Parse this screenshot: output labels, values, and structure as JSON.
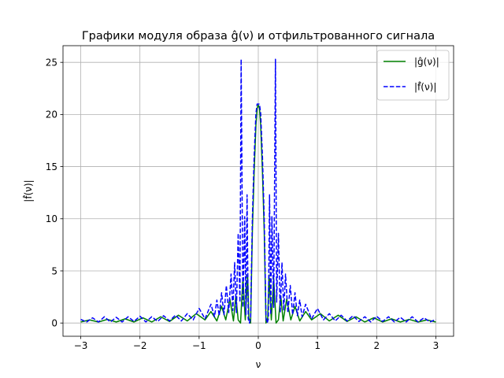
{
  "chart_data": {
    "type": "line",
    "title": "Графики модуля образа ĝ(ν) и отфильтрованного сигнала",
    "xlabel": "ν",
    "ylabel": "|f̂(ν)|",
    "xlim": [
      -3.3,
      3.3
    ],
    "ylim": [
      -1.27,
      26.6
    ],
    "xticks": [
      -3,
      -2,
      -1,
      0,
      1,
      2,
      3
    ],
    "xtick_labels": [
      "−3",
      "−2",
      "−1",
      "0",
      "1",
      "2",
      "3"
    ],
    "yticks": [
      0,
      5,
      10,
      15,
      20,
      25
    ],
    "ytick_labels": [
      "0",
      "5",
      "10",
      "15",
      "20",
      "25"
    ],
    "grid": true,
    "legend_position": "top-right",
    "series": [
      {
        "name": "|ĝ(ν)|",
        "color": "#008000",
        "style": "solid",
        "x": [
          -3.0,
          -2.85,
          -2.7,
          -2.55,
          -2.4,
          -2.25,
          -2.1,
          -1.95,
          -1.8,
          -1.65,
          -1.5,
          -1.35,
          -1.2,
          -1.05,
          -0.9,
          -0.8,
          -0.7,
          -0.62,
          -0.55,
          -0.48,
          -0.42,
          -0.38,
          -0.34,
          -0.3,
          -0.26,
          -0.22,
          -0.18,
          -0.16,
          -0.13,
          -0.1,
          -0.07,
          -0.04,
          -0.02,
          0.0,
          0.02,
          0.04,
          0.07,
          0.1,
          0.13,
          0.16,
          0.18,
          0.22,
          0.26,
          0.3,
          0.34,
          0.38,
          0.42,
          0.48,
          0.55,
          0.62,
          0.7,
          0.8,
          0.9,
          1.05,
          1.2,
          1.35,
          1.5,
          1.65,
          1.8,
          1.95,
          2.1,
          2.25,
          2.4,
          2.55,
          2.7,
          2.85,
          3.0
        ],
        "y": [
          0.1,
          0.3,
          0.1,
          0.35,
          0.1,
          0.4,
          0.1,
          0.5,
          0.1,
          0.6,
          0.15,
          0.75,
          0.2,
          0.9,
          0.3,
          1.1,
          0.2,
          1.6,
          0.3,
          2.3,
          0.2,
          2.6,
          0.3,
          0.0,
          4.3,
          0.3,
          4.6,
          0.5,
          0.0,
          8.8,
          14.5,
          19.0,
          20.6,
          20.9,
          20.6,
          19.0,
          14.5,
          8.8,
          0.0,
          0.5,
          4.6,
          0.3,
          4.3,
          0.0,
          0.3,
          2.6,
          0.2,
          2.3,
          0.3,
          1.6,
          0.2,
          1.1,
          0.3,
          0.9,
          0.2,
          0.75,
          0.15,
          0.6,
          0.1,
          0.5,
          0.1,
          0.4,
          0.1,
          0.35,
          0.1,
          0.3,
          0.1
        ]
      },
      {
        "name": "|f̂(ν)|",
        "color": "#0000ff",
        "style": "dashed",
        "x": [
          -3.0,
          -2.9,
          -2.8,
          -2.7,
          -2.6,
          -2.5,
          -2.4,
          -2.3,
          -2.2,
          -2.1,
          -2.0,
          -1.9,
          -1.8,
          -1.7,
          -1.6,
          -1.5,
          -1.4,
          -1.3,
          -1.2,
          -1.1,
          -1.0,
          -0.9,
          -0.8,
          -0.74,
          -0.7,
          -0.66,
          -0.62,
          -0.58,
          -0.54,
          -0.5,
          -0.46,
          -0.43,
          -0.4,
          -0.37,
          -0.34,
          -0.31,
          -0.29,
          -0.26,
          -0.23,
          -0.21,
          -0.19,
          -0.17,
          -0.15,
          -0.13,
          -0.1,
          -0.07,
          -0.04,
          -0.02,
          0.0,
          0.02,
          0.04,
          0.07,
          0.1,
          0.13,
          0.15,
          0.17,
          0.19,
          0.21,
          0.23,
          0.26,
          0.29,
          0.31,
          0.34,
          0.37,
          0.4,
          0.43,
          0.46,
          0.5,
          0.54,
          0.58,
          0.62,
          0.66,
          0.7,
          0.74,
          0.8,
          0.9,
          1.0,
          1.1,
          1.2,
          1.3,
          1.4,
          1.5,
          1.6,
          1.7,
          1.8,
          1.9,
          2.0,
          2.1,
          2.2,
          2.3,
          2.4,
          2.5,
          2.6,
          2.7,
          2.8,
          2.9,
          3.0
        ],
        "y": [
          0.35,
          0.1,
          0.5,
          0.1,
          0.6,
          0.1,
          0.55,
          0.1,
          0.6,
          0.15,
          0.65,
          0.1,
          0.6,
          0.15,
          0.7,
          0.2,
          0.75,
          0.2,
          0.9,
          0.3,
          1.4,
          0.4,
          1.8,
          0.6,
          2.2,
          0.7,
          2.9,
          0.8,
          3.6,
          1.0,
          4.7,
          1.2,
          5.8,
          1.0,
          8.6,
          2.0,
          25.3,
          1.5,
          10.2,
          0.8,
          12.3,
          0.4,
          0.0,
          0.5,
          10.0,
          16.0,
          20.1,
          21.0,
          21.0,
          21.0,
          20.1,
          16.0,
          10.0,
          0.5,
          0.0,
          0.4,
          12.3,
          0.8,
          10.2,
          1.5,
          25.3,
          2.0,
          8.6,
          1.0,
          5.8,
          1.2,
          4.7,
          1.0,
          3.6,
          0.8,
          2.9,
          0.7,
          2.2,
          0.6,
          1.8,
          0.4,
          1.4,
          0.3,
          0.9,
          0.2,
          0.75,
          0.2,
          0.7,
          0.15,
          0.6,
          0.1,
          0.65,
          0.15,
          0.6,
          0.1,
          0.55,
          0.1,
          0.6,
          0.1,
          0.5,
          0.1,
          0.35
        ]
      }
    ]
  }
}
